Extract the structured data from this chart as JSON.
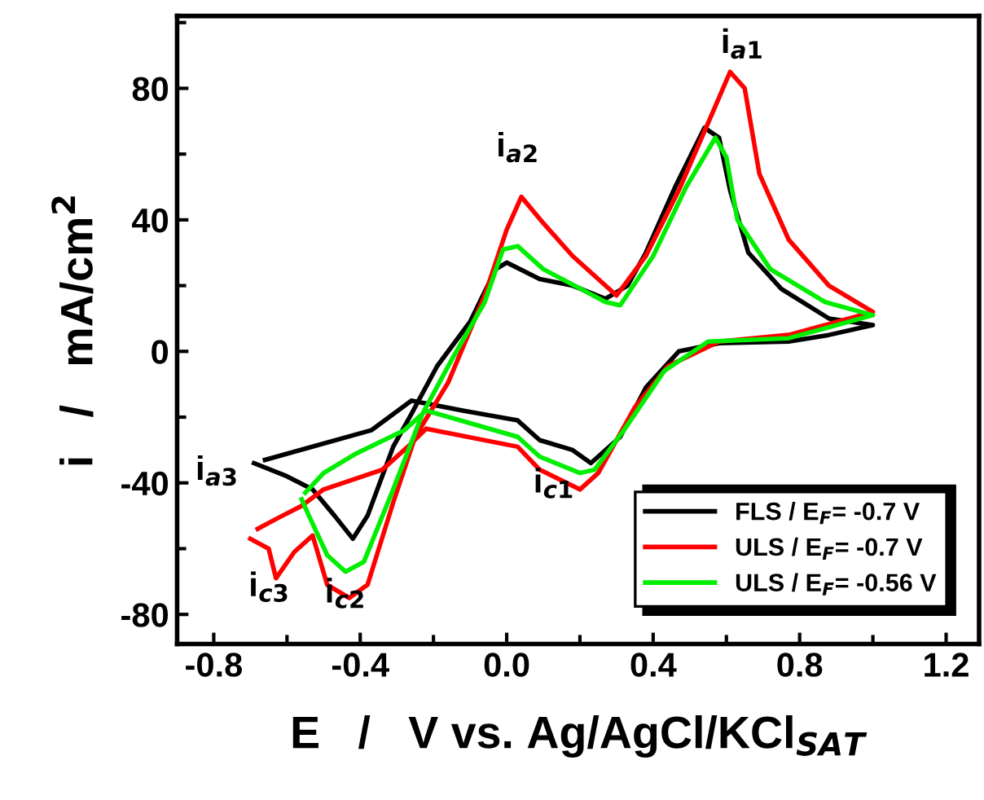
{
  "chart_data": {
    "type": "line",
    "xlabel": "E   /   V vs. Ag/AgCl/KCl$_{SAT}$",
    "ylabel": "i   /   mA/cm$^{2}$",
    "xlim": [
      -0.9,
      1.29
    ],
    "ylim": [
      -89,
      102
    ],
    "xticks": [
      -0.8,
      {
        "value": -0.6,
        "label": null
      },
      -0.4,
      {
        "value": -0.2,
        "label": null
      },
      {
        "value": 0.0,
        "label": "0.0"
      },
      {
        "value": 0.2,
        "label": null
      },
      0.4,
      {
        "value": 0.6,
        "label": null
      },
      0.8,
      {
        "value": 1.0,
        "label": null
      },
      1.2
    ],
    "yticks": [
      {
        "value": -80,
        "label": "-80"
      },
      {
        "value": -60,
        "label": null
      },
      {
        "value": -40,
        "label": "-40"
      },
      {
        "value": -20,
        "label": null
      },
      0,
      {
        "value": 20,
        "label": null
      },
      40,
      {
        "value": 60,
        "label": null
      },
      80,
      {
        "value": 100,
        "label": null
      }
    ],
    "legend": "bottom right",
    "grid": false,
    "marker": "none",
    "line_style": "solid",
    "series": [
      {
        "name": "FLS / E$_{F}$= -0.7 V",
        "color": "#000000",
        "x": [
          -0.69,
          -0.6,
          -0.53,
          -0.47,
          -0.42,
          -0.38,
          -0.31,
          -0.26,
          -0.19,
          -0.1,
          -0.03,
          0.0,
          0.09,
          0.18,
          0.27,
          0.33,
          0.38,
          0.46,
          0.54,
          0.58,
          0.61,
          0.66,
          0.75,
          0.88,
          1.0,
          0.88,
          0.77,
          0.58,
          0.47,
          0.38,
          0.31,
          0.23,
          0.18,
          0.09,
          0.03,
          -0.12,
          -0.26,
          -0.37,
          -0.66
        ],
        "values": [
          -34,
          -38,
          -42,
          -50,
          -57,
          -50,
          -29,
          -19,
          -4.5,
          9,
          25,
          27,
          22,
          20,
          16,
          20,
          30,
          50,
          68,
          65,
          49,
          30,
          19,
          10,
          8,
          5,
          3,
          2.5,
          0,
          -11,
          -26,
          -34,
          -30,
          -27,
          -21,
          -18,
          -15,
          -24,
          -33
        ]
      },
      {
        "name": "ULS / E$_{F}$= -0.7 V",
        "color": "#ff0000",
        "x": [
          -0.7,
          -0.65,
          -0.63,
          -0.58,
          -0.53,
          -0.49,
          -0.43,
          -0.38,
          -0.31,
          -0.25,
          -0.16,
          -0.06,
          0.0,
          0.04,
          0.1,
          0.18,
          0.3,
          0.38,
          0.47,
          0.56,
          0.61,
          0.65,
          0.69,
          0.77,
          0.88,
          1.0,
          0.77,
          0.58,
          0.44,
          0.35,
          0.25,
          0.2,
          0.09,
          0.03,
          -0.22,
          -0.27,
          -0.34,
          -0.5,
          -0.56,
          -0.63,
          -0.68
        ],
        "values": [
          -57,
          -60,
          -69,
          -61,
          -56,
          -71,
          -75,
          -71,
          -46,
          -26,
          -9.5,
          17,
          37,
          47,
          39,
          29,
          17,
          29,
          49,
          72,
          85,
          80,
          54,
          34,
          20,
          12,
          5,
          3,
          -4.5,
          -17,
          -37,
          -42,
          -36,
          -29,
          -23.5,
          -29,
          -36,
          -42,
          -47,
          -51,
          -54
        ]
      },
      {
        "name": "ULS / E$_{F}$= -0.56 V",
        "color": "#00ee00",
        "x": [
          -0.56,
          -0.54,
          -0.49,
          -0.44,
          -0.39,
          -0.31,
          -0.23,
          -0.15,
          -0.06,
          -0.01,
          0.03,
          0.1,
          0.27,
          0.31,
          0.4,
          0.49,
          0.57,
          0.6,
          0.63,
          0.72,
          0.87,
          1.0,
          0.77,
          0.55,
          0.43,
          0.32,
          0.24,
          0.2,
          0.09,
          0.03,
          -0.22,
          -0.28,
          -0.41,
          -0.5,
          -0.55
        ],
        "values": [
          -45,
          -50,
          -62,
          -67,
          -64,
          -42,
          -19,
          -2.5,
          15,
          31,
          32,
          25,
          15,
          14,
          29,
          50,
          65,
          59,
          40,
          25,
          15,
          11,
          4,
          3,
          -6,
          -24,
          -36,
          -37,
          -32,
          -26,
          -18,
          -24,
          -31,
          -37,
          -43
        ]
      }
    ],
    "annotations": [
      "i$_{a1}$",
      "i$_{a2}$",
      "i$_{a3}$",
      "i$_{c1}$",
      "i$_{c3}$",
      "i$_{c2}$"
    ]
  }
}
